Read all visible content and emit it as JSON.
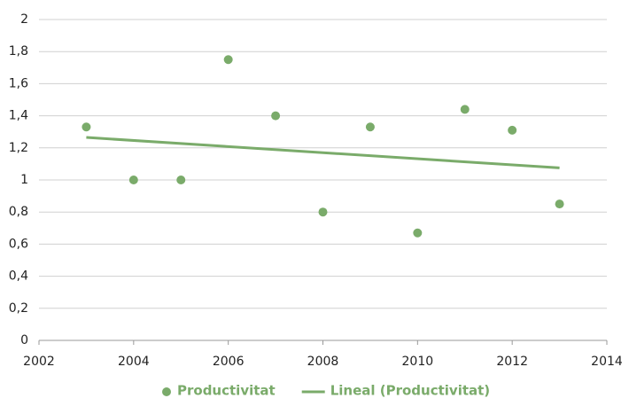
{
  "chart_data": {
    "type": "scatter",
    "series": [
      {
        "name": "Productivitat",
        "color": "#7aab6a",
        "x": [
          2003,
          2004,
          2005,
          2006,
          2007,
          2008,
          2009,
          2010,
          2011,
          2012,
          2013
        ],
        "values": [
          1.33,
          1.0,
          1.0,
          1.75,
          1.4,
          0.8,
          1.33,
          0.67,
          1.44,
          1.31,
          0.85
        ]
      },
      {
        "name": "Lineal (Productivitat)",
        "type": "line",
        "color": "#7aab6a",
        "x": [
          2003,
          2013
        ],
        "values": [
          1.265,
          1.075
        ]
      }
    ],
    "xlim": [
      2002,
      2014
    ],
    "xticks": [
      2002,
      2004,
      2006,
      2008,
      2010,
      2012,
      2014
    ],
    "ylim": [
      0,
      2
    ],
    "yticks": [
      0,
      {
        "value": 0.2,
        "label": "0,2"
      },
      {
        "value": 0.4,
        "label": "0,4"
      },
      {
        "value": 0.6,
        "label": "0,6"
      },
      {
        "value": 0.8,
        "label": "0,8"
      },
      1,
      {
        "value": 1.2,
        "label": "1,2"
      },
      {
        "value": 1.4,
        "label": "1,4"
      },
      {
        "value": 1.6,
        "label": "1,6"
      },
      {
        "value": 1.8,
        "label": "1,8"
      },
      2
    ],
    "grid": true,
    "legend": "bottom"
  }
}
